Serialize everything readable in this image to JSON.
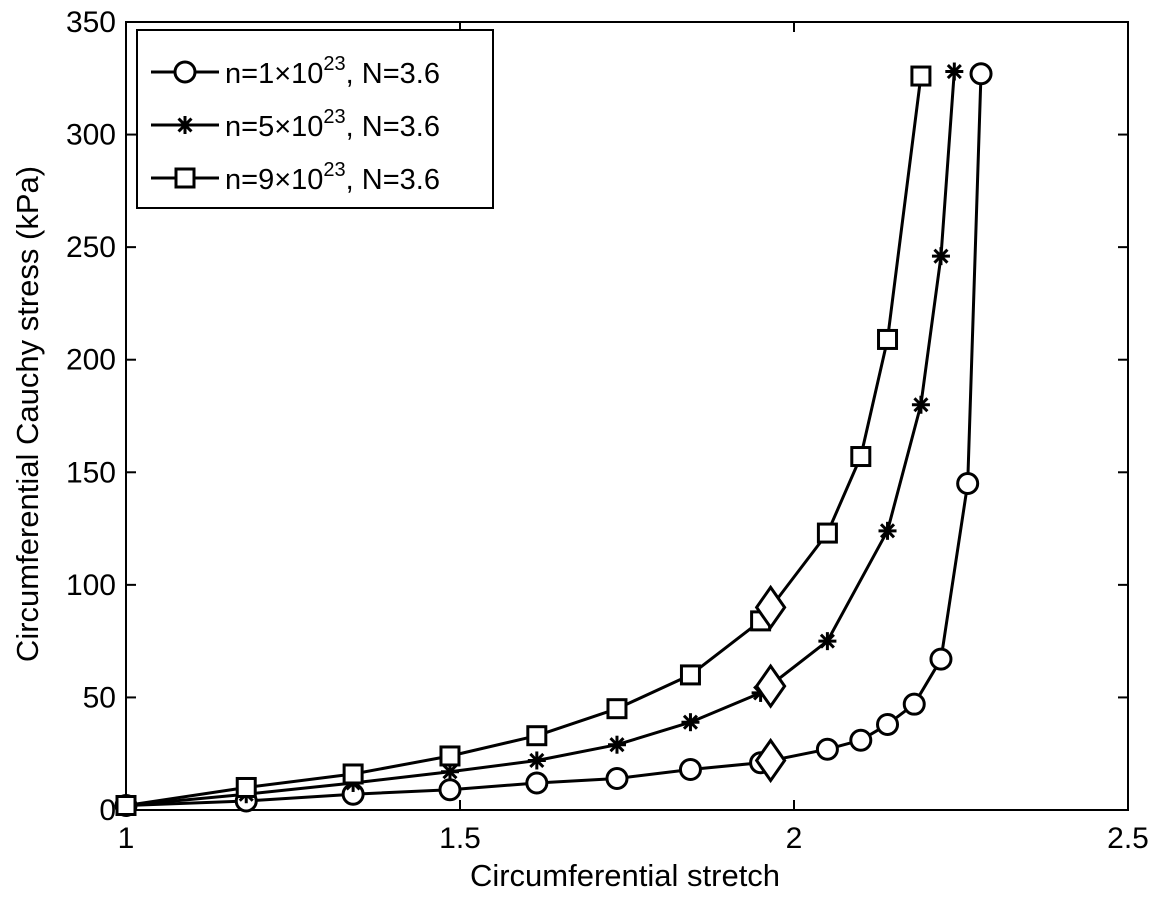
{
  "chart_data": {
    "type": "line",
    "title": "",
    "xlabel": "Circumferential stretch",
    "ylabel": "Circumferential Cauchy stress (kPa)",
    "xlim": [
      1,
      2.5
    ],
    "ylim": [
      0,
      350
    ],
    "xticks": [
      1,
      1.5,
      2,
      2.5
    ],
    "xtick_labels": [
      "1",
      "1.5",
      "2",
      "2.5"
    ],
    "yticks": [
      0,
      50,
      100,
      150,
      200,
      250,
      300,
      350
    ],
    "ytick_labels": [
      "0",
      "50",
      "100",
      "150",
      "200",
      "250",
      "300",
      "350"
    ],
    "grid": false,
    "legend_position": "top-left",
    "series": [
      {
        "name": "n=1×10^23, N=3.6",
        "legend": {
          "prefix": "n=1×10",
          "sup": "23",
          "suffix": ", N=3.6"
        },
        "marker": "circle",
        "color": "#000000",
        "x": [
          1.0,
          1.18,
          1.34,
          1.485,
          1.615,
          1.735,
          1.845,
          1.95,
          2.05,
          2.1,
          2.14,
          2.18,
          2.22,
          2.26,
          2.28
        ],
        "y": [
          2,
          4,
          7,
          9,
          12,
          14,
          18,
          21,
          27,
          31,
          38,
          47,
          67,
          145,
          327
        ]
      },
      {
        "name": "n=5×10^23, N=3.6",
        "legend": {
          "prefix": "n=5×10",
          "sup": "23",
          "suffix": ", N=3.6"
        },
        "marker": "asterisk",
        "color": "#000000",
        "x": [
          1.0,
          1.18,
          1.34,
          1.485,
          1.615,
          1.735,
          1.845,
          1.95,
          2.05,
          2.14,
          2.19,
          2.22,
          2.24
        ],
        "y": [
          2,
          7,
          12,
          17,
          22,
          29,
          39,
          52,
          75,
          124,
          180,
          246,
          328
        ]
      },
      {
        "name": "n=9×10^23, N=3.6",
        "legend": {
          "prefix": "n=9×10",
          "sup": "23",
          "suffix": ", N=3.6"
        },
        "marker": "square",
        "color": "#000000",
        "x": [
          1.0,
          1.18,
          1.34,
          1.485,
          1.615,
          1.735,
          1.845,
          1.95,
          2.05,
          2.1,
          2.14,
          2.19
        ],
        "y": [
          2,
          10,
          16,
          24,
          33,
          45,
          60,
          84,
          123,
          157,
          209,
          326
        ]
      }
    ],
    "annotations": [
      {
        "marker": "diamond",
        "x": 1.965,
        "y": 22
      },
      {
        "marker": "diamond",
        "x": 1.965,
        "y": 55
      },
      {
        "marker": "diamond",
        "x": 1.965,
        "y": 90
      }
    ]
  }
}
